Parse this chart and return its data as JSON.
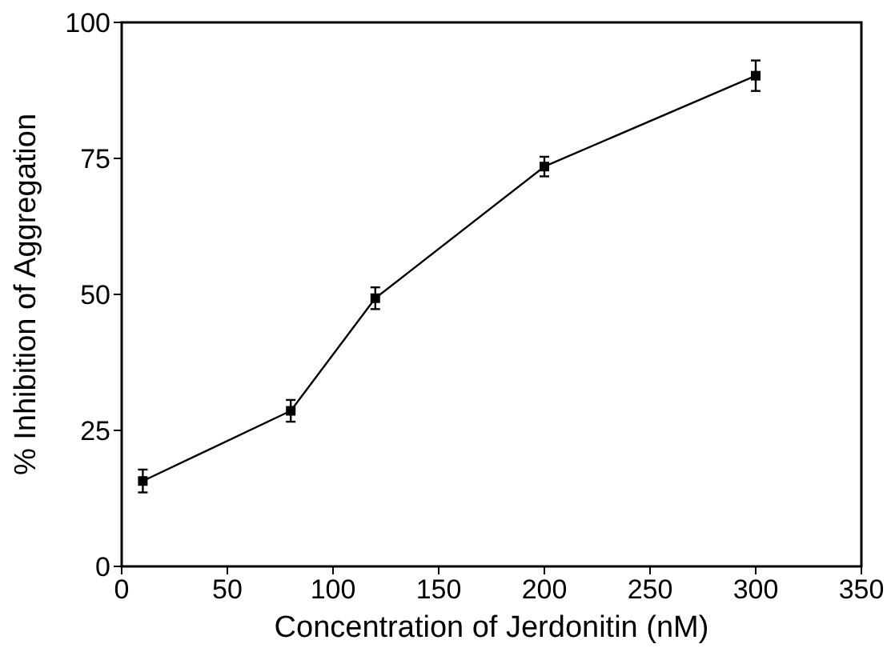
{
  "chart_data": {
    "type": "line",
    "xlabel": "Concentration of Jerdonitin (nM)",
    "ylabel": "% Inhibition of Aggregation",
    "x": [
      10,
      80,
      120,
      200,
      300
    ],
    "series": [
      {
        "color": "#000000",
        "values": [
          15.7,
          28.6,
          49.3,
          73.5,
          90.2
        ],
        "errors": [
          2.1,
          2,
          2,
          1.8,
          2.8
        ]
      }
    ],
    "xlim": [
      0,
      350
    ],
    "xticks": [
      0,
      50,
      100,
      150,
      200,
      250,
      300,
      350
    ],
    "ylim": [
      0,
      100
    ],
    "yticks": [
      0,
      25,
      50,
      75,
      100
    ],
    "marker": "square",
    "line_style": "solid"
  }
}
